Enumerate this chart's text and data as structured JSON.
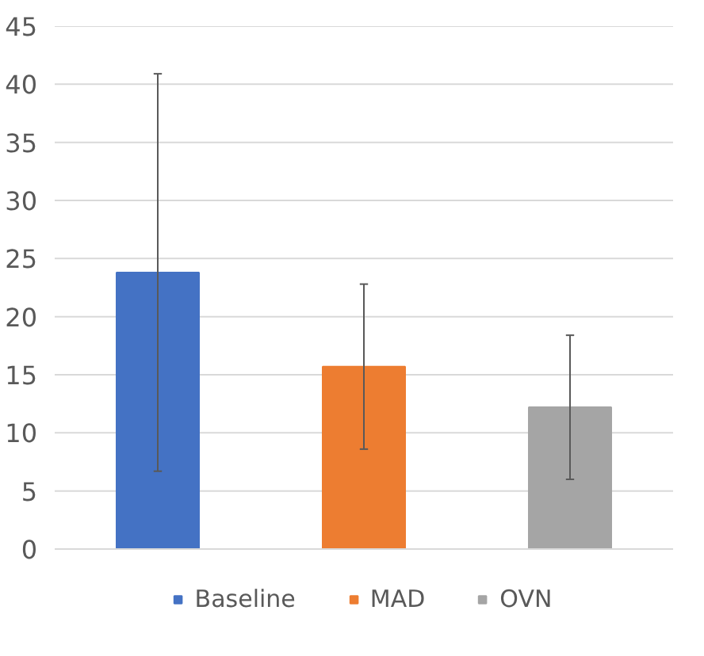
{
  "chart_data": {
    "type": "bar",
    "categories": [
      null,
      null,
      null
    ],
    "series": [
      {
        "name": "Baseline",
        "color": "#4472c4",
        "values": [
          23.8,
          null,
          null
        ],
        "errors": [
          17.1,
          null,
          null
        ]
      },
      {
        "name": "MAD",
        "color": "#ed7d31",
        "values": [
          null,
          15.7,
          null
        ],
        "errors": [
          null,
          7.1,
          null
        ]
      },
      {
        "name": "OVN",
        "color": "#a5a5a5",
        "values": [
          null,
          null,
          12.2
        ],
        "errors": [
          null,
          null,
          6.2
        ]
      }
    ],
    "ylim": [
      0,
      45
    ],
    "yticks": [
      0,
      5,
      10,
      15,
      20,
      25,
      30,
      35,
      40,
      45
    ],
    "grid": "y",
    "legend": "bottom"
  }
}
